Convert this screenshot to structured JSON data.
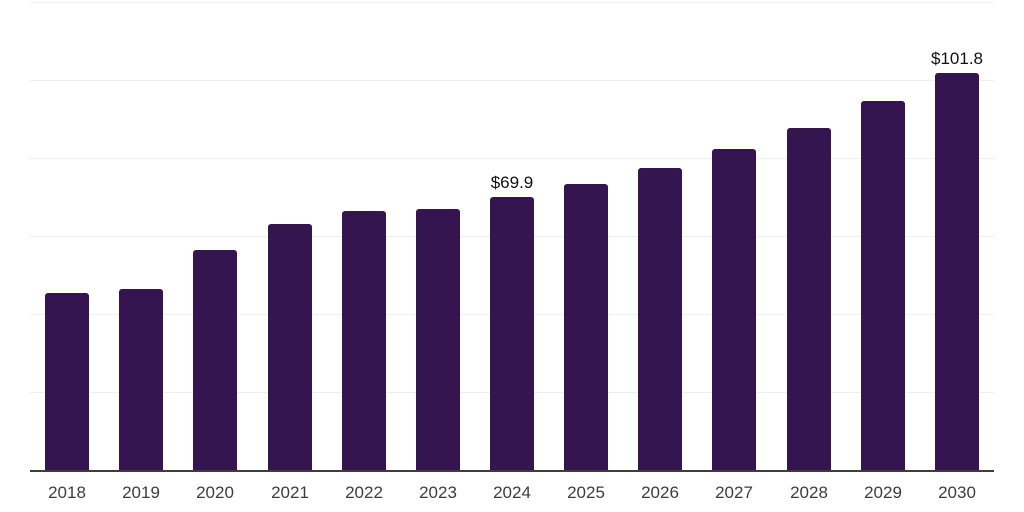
{
  "chart_data": {
    "type": "bar",
    "title": "",
    "xlabel": "",
    "ylabel": "",
    "categories": [
      "2018",
      "2019",
      "2020",
      "2021",
      "2022",
      "2023",
      "2024",
      "2025",
      "2026",
      "2027",
      "2028",
      "2029",
      "2030"
    ],
    "values": [
      45.4,
      46.3,
      56.3,
      63.1,
      66.5,
      67.0,
      69.9,
      73.4,
      77.5,
      82.4,
      87.7,
      94.6,
      101.8
    ],
    "annotations": [
      {
        "category_index": 6,
        "text": "$69.9"
      },
      {
        "category_index": 12,
        "text": "$101.8"
      }
    ],
    "ylim": [
      0,
      120
    ],
    "gridline_interval": 20,
    "grid": true,
    "legend": false,
    "colors": {
      "bar": "#34154f",
      "gridline": "#efefef",
      "axis": "#3d3d3d",
      "tick_label": "#3d3d3d",
      "value_label": "#111111",
      "background": "#ffffff"
    }
  }
}
